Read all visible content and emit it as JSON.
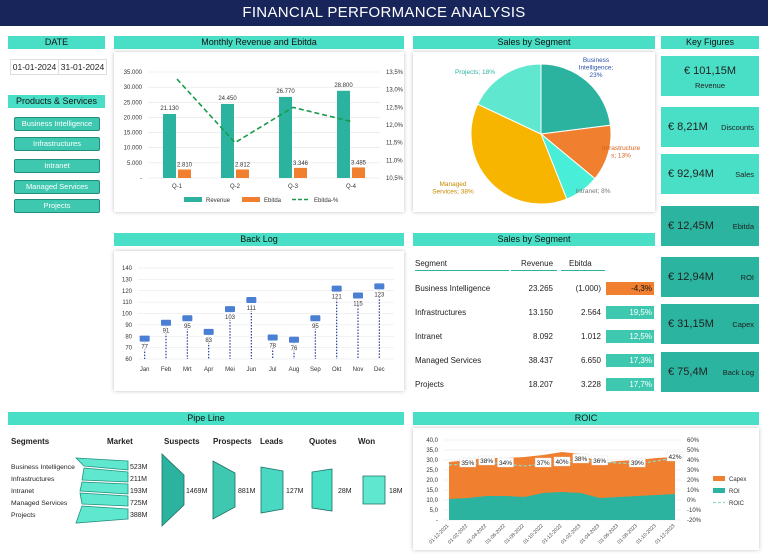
{
  "title": "FINANCIAL PERFORMANCE ANALYSIS",
  "date": {
    "header": "DATE",
    "from": "01-01-2024",
    "to": "31-01-2024"
  },
  "products": {
    "header": "Products & Services",
    "items": [
      "Business Intelligence",
      "Infrastructures",
      "Intranet",
      "Managed Services",
      "Projects"
    ]
  },
  "monthly": {
    "header": "Monthly Revenue and Ebitda",
    "chart_data": {
      "type": "bar",
      "categories": [
        "Q-1",
        "Q-2",
        "Q-3",
        "Q-4"
      ],
      "series": [
        {
          "name": "Revenue",
          "values": [
            21130,
            24450,
            26770,
            28800
          ],
          "labels": [
            "21.130",
            "24.450",
            "26.770",
            "28.800"
          ]
        },
        {
          "name": "Ebitda",
          "values": [
            2810,
            2812,
            3346,
            3485
          ],
          "labels": [
            "2.810",
            "2.812",
            "3.346",
            "3.485"
          ]
        },
        {
          "name": "Ebitda-%",
          "values": [
            13.3,
            11.5,
            12.5,
            12.1
          ],
          "type": "line",
          "axis": "right"
        }
      ],
      "y_ticks": [
        "35.000",
        "30.000",
        "25.000",
        "20.000",
        "15.000",
        "10.000",
        "5.000",
        "-"
      ],
      "y2_ticks": [
        "13,5%",
        "13,0%",
        "12,5%",
        "12,0%",
        "11,5%",
        "11,0%",
        "10,5%"
      ],
      "ylim": [
        0,
        35000
      ],
      "y2lim": [
        10.5,
        13.5
      ],
      "legend": [
        "Revenue",
        "Ebitda",
        "Ebitda-%"
      ],
      "colors": {
        "Revenue": "#2bb3a0",
        "Ebitda": "#f07f2f",
        "Ebitda-%": "#1a9a4a"
      }
    }
  },
  "segment_pie": {
    "header": "Sales by Segment",
    "chart_data": {
      "type": "pie",
      "slices": [
        {
          "label": "Business Intelligence; 23%",
          "value": 23,
          "color": "#2bb3a0"
        },
        {
          "label": "Infrastructure s; 13%",
          "value": 13,
          "color": "#f07f2f"
        },
        {
          "label": "Intranet; 8%",
          "value": 8,
          "color": "#49eed8"
        },
        {
          "label": "Managed Services; 38%",
          "value": 38,
          "color": "#f7b500"
        },
        {
          "label": "Projects; 18%",
          "value": 18,
          "color": "#5fe8cf"
        }
      ]
    }
  },
  "kpis": [
    {
      "value": "€ 101,15M",
      "label": "Revenue"
    },
    {
      "value": "€ 8,21M",
      "label": "Discounts"
    },
    {
      "value": "€ 92,94M",
      "label": "Sales"
    },
    {
      "value": "€ 12,45M",
      "label": "Ebitda"
    },
    {
      "value": "€ 12,94M",
      "label": "ROI"
    },
    {
      "value": "€ 31,15M",
      "label": "Capex"
    },
    {
      "value": "€ 75,4M",
      "label": "Back Log"
    }
  ],
  "key_figures_header": "Key Figures",
  "backlog": {
    "header": "Back Log",
    "chart_data": {
      "type": "line",
      "categories": [
        "Jan",
        "Feb",
        "Mrt",
        "Apr",
        "Mei",
        "Jun",
        "Jul",
        "Aug",
        "Sep",
        "Okt",
        "Nov",
        "Dec"
      ],
      "values": [
        77,
        91,
        95,
        83,
        103,
        111,
        78,
        76,
        95,
        121,
        115,
        123
      ],
      "y_ticks": [
        "140",
        "130",
        "120",
        "110",
        "100",
        "90",
        "80",
        "70",
        "60"
      ],
      "ylim": [
        60,
        140
      ]
    }
  },
  "segment_table": {
    "header": "Sales by Segment",
    "columns": [
      "Segment",
      "Revenue",
      "Ebitda"
    ],
    "rows": [
      {
        "segment": "Business Intelligence",
        "revenue": "23.265",
        "ebitda": "(1.000)",
        "pct": "-4,3%",
        "neg": true
      },
      {
        "segment": "Infrastructures",
        "revenue": "13.150",
        "ebitda": "2.564",
        "pct": "19,5%",
        "neg": false
      },
      {
        "segment": "Intranet",
        "revenue": "8.092",
        "ebitda": "1.012",
        "pct": "12,5%",
        "neg": false
      },
      {
        "segment": "Managed Services",
        "revenue": "38.437",
        "ebitda": "6.650",
        "pct": "17,3%",
        "neg": false
      },
      {
        "segment": "Projects",
        "revenue": "18.207",
        "ebitda": "3.228",
        "pct": "17,7%",
        "neg": false
      }
    ]
  },
  "pipeline": {
    "header": "Pipe Line",
    "columns": [
      "Segments",
      "Market",
      "Suspects",
      "Prospects",
      "Leads",
      "Quotes",
      "Won"
    ],
    "segments": [
      "Business Intelligence",
      "Infrastructures",
      "Intranet",
      "Managed Services",
      "Projects"
    ],
    "market_values": [
      "523M",
      "211M",
      "193M",
      "725M",
      "388M"
    ],
    "stage_values": [
      "1469M",
      "881M",
      "127M",
      "28M",
      "18M"
    ]
  },
  "roic": {
    "header": "ROIC",
    "chart_data": {
      "type": "area",
      "categories": [
        "01-12-2021",
        "01-02-2022",
        "01-04-2022",
        "01-06-2022",
        "01-08-2022",
        "01-10-2022",
        "01-12-2022",
        "01-02-2023",
        "01-04-2023",
        "01-06-2023",
        "01-08-2023",
        "01-10-2023",
        "01-12-2023"
      ],
      "series": [
        {
          "name": "Capex",
          "values": [
            29,
            30,
            31,
            31,
            31.5,
            32.5,
            34,
            33,
            28.5,
            29.5,
            30,
            31,
            31.5
          ]
        },
        {
          "name": "ROI",
          "values": [
            10.5,
            11,
            12,
            12,
            11.5,
            13.5,
            14,
            13.5,
            11,
            11.5,
            12,
            12.5,
            13
          ]
        },
        {
          "name": "ROIC",
          "values": [
            35,
            36,
            38,
            36,
            34,
            36,
            37,
            40,
            38,
            37,
            36,
            39,
            42
          ],
          "axis": "right"
        }
      ],
      "point_labels": [
        "35%",
        "38%",
        "34%",
        "37%",
        "40%",
        "38%",
        "36%",
        "39%",
        "42%"
      ],
      "y_ticks": [
        "40,0",
        "35,0",
        "30,0",
        "25,0",
        "20,0",
        "15,0",
        "10,0",
        "5,0",
        "-"
      ],
      "y2_ticks": [
        "60%",
        "50%",
        "40%",
        "30%",
        "20%",
        "10%",
        "0%",
        "-10%",
        "-20%"
      ],
      "ylim": [
        0,
        40
      ],
      "y2lim": [
        -20,
        60
      ],
      "legend": [
        "Capex",
        "ROI",
        "ROIC"
      ],
      "colors": {
        "Capex": "#f07f2f",
        "ROI": "#2bb3a0",
        "ROIC": "#49dfc6"
      }
    }
  }
}
